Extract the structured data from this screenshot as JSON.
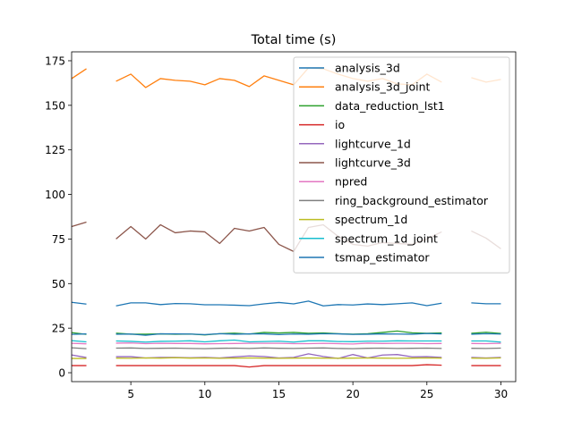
{
  "chart_data": {
    "type": "line",
    "title": "Total time (s)",
    "xlabel": "",
    "ylabel": "",
    "xlim": [
      1,
      31
    ],
    "ylim": [
      -5,
      180
    ],
    "xticks": [
      5,
      10,
      15,
      20,
      25,
      30
    ],
    "yticks": [
      0,
      25,
      50,
      75,
      100,
      125,
      150,
      175
    ],
    "grid": false,
    "legend_position": "top-right",
    "x": [
      1,
      2,
      3,
      4,
      5,
      6,
      7,
      8,
      9,
      10,
      11,
      12,
      13,
      14,
      15,
      16,
      17,
      18,
      19,
      20,
      21,
      22,
      23,
      24,
      25,
      26,
      27,
      28,
      29,
      30
    ],
    "series": [
      {
        "name": "analysis_3d",
        "color": "#1f77b4",
        "values": [
          39.5,
          38.5,
          null,
          37.5,
          39.2,
          39.2,
          38.2,
          38.8,
          38.7,
          38.1,
          38.1,
          37.9,
          37.6,
          38.6,
          39.4,
          38.6,
          40.2,
          37.5,
          38.2,
          38.0,
          38.6,
          38.2,
          38.7,
          39.2,
          37.6,
          39.0,
          null,
          39.2,
          38.7,
          38.7
        ]
      },
      {
        "name": "analysis_3d_joint",
        "color": "#ff7f0e",
        "values": [
          165,
          170.5,
          null,
          163.5,
          167.5,
          160,
          165,
          164,
          163.5,
          161.5,
          165,
          164,
          160.5,
          166.5,
          164,
          161.5,
          171,
          170.5,
          167.5,
          165,
          163.5,
          165,
          162,
          161.5,
          167.5,
          163,
          null,
          165.5,
          163,
          164.5
        ]
      },
      {
        "name": "data_reduction_lst1",
        "color": "#2ca02c",
        "values": [
          22.5,
          21.5,
          null,
          22.2,
          21.6,
          21.6,
          21.8,
          21.6,
          21.7,
          21.2,
          21.9,
          22.2,
          21.7,
          22.6,
          22.3,
          22.6,
          22.1,
          22.3,
          21.9,
          21.6,
          21.9,
          22.6,
          23.4,
          22.4,
          22.1,
          22.3,
          null,
          22.1,
          22.7,
          22.0
        ]
      },
      {
        "name": "io",
        "color": "#d62728",
        "values": [
          4.0,
          4.0,
          null,
          4.0,
          4.0,
          4.0,
          4.0,
          4.0,
          4.0,
          4.0,
          4.0,
          4.0,
          3.2,
          4.0,
          4.0,
          4.0,
          4.0,
          4.0,
          4.0,
          4.0,
          4.0,
          4.0,
          4.0,
          4.0,
          4.5,
          4.2,
          null,
          4.0,
          4.0,
          4.0
        ]
      },
      {
        "name": "lightcurve_1d",
        "color": "#9467bd",
        "values": [
          10.0,
          8.5,
          null,
          9.0,
          9.0,
          8.3,
          8.6,
          8.6,
          8.4,
          8.6,
          8.3,
          8.9,
          9.4,
          9.1,
          8.3,
          8.6,
          10.6,
          9.1,
          8.0,
          10.2,
          8.3,
          9.9,
          10.2,
          8.9,
          9.0,
          8.6,
          null,
          8.6,
          8.3,
          8.6
        ]
      },
      {
        "name": "lightcurve_3d",
        "color": "#8c564b",
        "values": [
          82,
          84.5,
          null,
          75,
          82,
          75,
          83,
          78.5,
          79.5,
          79,
          72.5,
          81,
          79.5,
          81.5,
          72,
          68,
          81.5,
          83,
          76.5,
          72,
          71,
          73,
          72.5,
          72,
          75,
          79,
          null,
          79.5,
          75.5,
          69.5
        ]
      },
      {
        "name": "npred",
        "color": "#e377c2",
        "values": [
          16.5,
          16.2,
          null,
          16.6,
          16.7,
          16.3,
          16.5,
          16.4,
          16.4,
          16.2,
          16.3,
          16.4,
          16.5,
          16.5,
          16.5,
          16.3,
          16.3,
          16.5,
          16.3,
          16.1,
          16.6,
          16.4,
          16.5,
          16.5,
          16.3,
          16.4,
          null,
          16.4,
          16.3,
          16.5
        ]
      },
      {
        "name": "ring_background_estimator",
        "color": "#7f7f7f",
        "values": [
          14.0,
          13.5,
          null,
          13.8,
          13.9,
          13.6,
          13.7,
          13.8,
          13.6,
          13.5,
          13.7,
          13.8,
          13.6,
          13.9,
          13.7,
          13.6,
          13.8,
          13.9,
          13.6,
          13.5,
          13.7,
          13.8,
          13.6,
          13.7,
          13.8,
          13.6,
          null,
          13.7,
          13.6,
          13.8
        ]
      },
      {
        "name": "spectrum_1d",
        "color": "#bcbd22",
        "values": [
          8.0,
          8.0,
          null,
          8.2,
          8.1,
          8.3,
          8.2,
          8.4,
          8.2,
          8.3,
          8.1,
          8.2,
          8.3,
          8.2,
          8.1,
          8.2,
          8.3,
          8.2,
          8.1,
          8.2,
          8.3,
          8.2,
          8.1,
          8.2,
          8.3,
          8.2,
          null,
          8.2,
          8.1,
          8.3
        ]
      },
      {
        "name": "spectrum_1d_joint",
        "color": "#17becf",
        "values": [
          18.0,
          17.3,
          null,
          17.8,
          17.6,
          17.2,
          17.6,
          17.7,
          17.9,
          17.3,
          17.9,
          18.3,
          17.3,
          17.5,
          17.7,
          17.2,
          17.9,
          17.9,
          17.5,
          17.4,
          17.7,
          17.7,
          17.9,
          17.8,
          17.8,
          17.8,
          null,
          17.8,
          17.8,
          17.2
        ]
      },
      {
        "name": "tsmap_estimator",
        "color": "#1f77b4",
        "values": [
          21.5,
          21.8,
          null,
          21.6,
          21.7,
          21.0,
          21.8,
          21.8,
          21.7,
          21.4,
          21.9,
          21.6,
          21.8,
          21.8,
          21.4,
          21.7,
          21.6,
          21.9,
          21.8,
          21.5,
          21.6,
          21.8,
          21.7,
          21.6,
          22.0,
          21.8,
          null,
          21.6,
          21.9,
          21.7
        ]
      }
    ]
  }
}
